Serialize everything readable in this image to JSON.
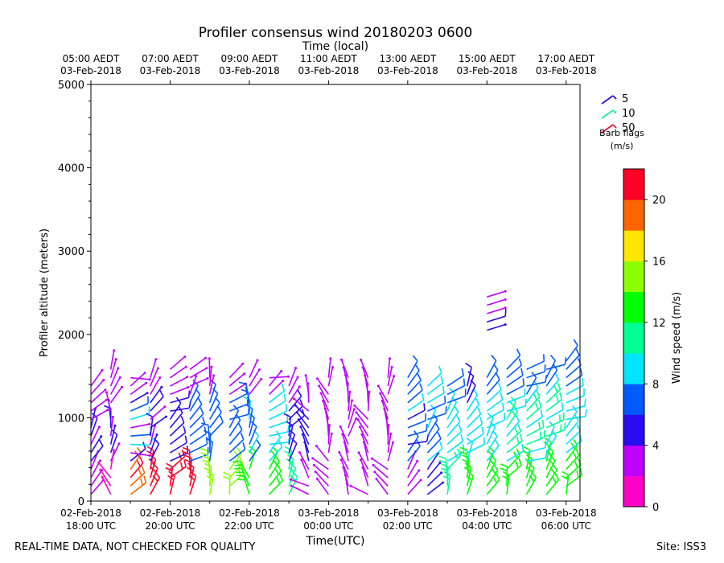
{
  "chart_data": {
    "type": "wind-barb profile",
    "title": "Profiler consensus wind 20180203 0600",
    "top_axis_label": "Time (local)",
    "top_ticks": [
      {
        "line1": "05:00 AEDT",
        "line2": "03-Feb-2018",
        "utc_hours": 0
      },
      {
        "line1": "07:00 AEDT",
        "line2": "03-Feb-2018",
        "utc_hours": 2
      },
      {
        "line1": "09:00 AEDT",
        "line2": "03-Feb-2018",
        "utc_hours": 4
      },
      {
        "line1": "11:00 AEDT",
        "line2": "03-Feb-2018",
        "utc_hours": 6
      },
      {
        "line1": "13:00 AEDT",
        "line2": "03-Feb-2018",
        "utc_hours": 8
      },
      {
        "line1": "15:00 AEDT",
        "line2": "03-Feb-2018",
        "utc_hours": 10
      },
      {
        "line1": "17:00 AEDT",
        "line2": "03-Feb-2018",
        "utc_hours": 12
      }
    ],
    "xlabel": "Time(UTC)",
    "x_ticks": [
      {
        "line1": "02-Feb-2018",
        "line2": "18:00 UTC",
        "utc_hours": 0
      },
      {
        "line1": "02-Feb-2018",
        "line2": "20:00 UTC",
        "utc_hours": 2
      },
      {
        "line1": "02-Feb-2018",
        "line2": "22:00 UTC",
        "utc_hours": 4
      },
      {
        "line1": "03-Feb-2018",
        "line2": "00:00 UTC",
        "utc_hours": 6
      },
      {
        "line1": "03-Feb-2018",
        "line2": "02:00 UTC",
        "utc_hours": 8
      },
      {
        "line1": "03-Feb-2018",
        "line2": "04:00 UTC",
        "utc_hours": 10
      },
      {
        "line1": "03-Feb-2018",
        "line2": "06:00 UTC",
        "utc_hours": 12
      }
    ],
    "xlim_hours": [
      0,
      12.35
    ],
    "ylabel": "Profiler altitude (meters)",
    "ylim": [
      0,
      5000
    ],
    "y_ticks": [
      0,
      1000,
      2000,
      3000,
      4000,
      5000
    ],
    "legend": {
      "title": "Barb flags",
      "units": "(m/s)",
      "entries": [
        {
          "label": "5",
          "color": "#2a0cf0"
        },
        {
          "label": "10",
          "color": "#1de9a6"
        },
        {
          "label": "50",
          "color": "#f0103c"
        }
      ]
    },
    "colorbar": {
      "label": "Wind speed (m/s)",
      "ticks": [
        0,
        4,
        8,
        12,
        16,
        20
      ],
      "range": [
        0,
        22
      ],
      "colors": [
        "#ff00c8",
        "#bf00ff",
        "#2a0cf0",
        "#005aff",
        "#00e5ff",
        "#00ff95",
        "#00ff00",
        "#8cff00",
        "#ffe600",
        "#ff6400",
        "#ff0028"
      ]
    },
    "wind_columns": [
      {
        "t": 0.0,
        "top": 1450,
        "low": [
          2
        ],
        "mid": [
          3,
          6
        ],
        "upper": [
          2
        ],
        "dir": 0.9
      },
      {
        "t": 0.5,
        "top": 1600,
        "low": [
          1
        ],
        "mid": [
          3,
          6
        ],
        "upper": [
          2
        ],
        "dir": 1.4
      },
      {
        "t": 1.0,
        "top": 1550,
        "low": [
          20,
          18
        ],
        "mid": [
          2,
          10
        ],
        "upper": [
          2
        ],
        "dir": 0.3
      },
      {
        "t": 1.5,
        "top": 1550,
        "low": [
          20
        ],
        "mid": [
          3,
          6
        ],
        "upper": [
          2
        ],
        "dir": 1.0
      },
      {
        "t": 2.0,
        "top": 1600,
        "low": [
          20
        ],
        "mid": [
          5,
          6
        ],
        "upper": [
          2
        ],
        "dir": 0.6
      },
      {
        "t": 2.5,
        "top": 1600,
        "low": [
          21
        ],
        "mid": [
          6,
          7
        ],
        "upper": [
          2
        ],
        "dir": 0.8
      },
      {
        "t": 3.0,
        "top": 1500,
        "low": [
          14
        ],
        "mid": [
          6,
          8
        ],
        "upper": [
          2
        ],
        "dir": 1.2
      },
      {
        "t": 3.5,
        "top": 1500,
        "low": [
          14
        ],
        "mid": [
          6,
          7
        ],
        "upper": [
          2
        ],
        "dir": 0.7
      },
      {
        "t": 4.0,
        "top": 1500,
        "low": [
          12
        ],
        "mid": [
          6,
          9
        ],
        "upper": [
          2
        ],
        "dir": 1.3
      },
      {
        "t": 4.5,
        "top": 1500,
        "low": [
          12
        ],
        "mid": [
          8,
          10
        ],
        "upper": [
          3
        ],
        "dir": 0.5
      },
      {
        "t": 5.0,
        "top": 1400,
        "low": [
          10
        ],
        "mid": [
          5,
          6
        ],
        "upper": [
          3
        ],
        "dir": 1.1
      },
      {
        "t": 5.5,
        "top": 1300,
        "low": [
          3
        ],
        "mid": [
          4,
          5
        ],
        "upper": [
          3
        ],
        "dir": 2.0
      },
      {
        "t": 6.0,
        "top": 1550,
        "low": [
          3
        ],
        "mid": [
          3,
          4
        ],
        "upper": [
          2
        ],
        "dir": 1.8
      },
      {
        "t": 6.5,
        "top": 1500,
        "low": [
          2
        ],
        "mid": [
          3,
          4
        ],
        "upper": [
          2
        ],
        "dir": 1.6
      },
      {
        "t": 7.0,
        "top": 1500,
        "low": [
          2
        ],
        "mid": [
          3,
          4
        ],
        "upper": [
          2
        ],
        "dir": 1.9
      },
      {
        "t": 7.5,
        "top": 1550,
        "low": [
          2
        ],
        "mid": [
          3,
          4
        ],
        "upper": [
          2
        ],
        "dir": 1.7
      },
      {
        "t": 8.0,
        "top": 1500,
        "low": [
          3
        ],
        "mid": [
          5,
          9
        ],
        "upper": [
          6
        ],
        "dir": 0.6
      },
      {
        "t": 8.5,
        "top": 1400,
        "low": [
          4
        ],
        "mid": [
          6,
          9
        ],
        "upper": [
          8
        ],
        "dir": 0.7
      },
      {
        "t": 9.0,
        "top": 1400,
        "low": [
          10
        ],
        "mid": [
          8,
          9
        ],
        "upper": [
          6
        ],
        "dir": 0.8
      },
      {
        "t": 9.5,
        "top": 1450,
        "low": [
          12
        ],
        "mid": [
          9,
          10
        ],
        "upper": [
          5
        ],
        "dir": 0.9
      },
      {
        "t": 10.0,
        "top": 1500,
        "low": [
          13
        ],
        "mid": [
          9,
          10
        ],
        "upper": [
          6
        ],
        "dir": 0.8
      },
      {
        "t": 10.5,
        "top": 1600,
        "low": [
          12
        ],
        "mid": [
          9,
          11
        ],
        "upper": [
          6
        ],
        "dir": 0.7
      },
      {
        "t": 11.0,
        "top": 1600,
        "low": [
          12
        ],
        "mid": [
          9,
          11
        ],
        "upper": [
          6
        ],
        "dir": 0.6
      },
      {
        "t": 11.5,
        "top": 1650,
        "low": [
          13
        ],
        "mid": [
          9,
          11
        ],
        "upper": [
          6
        ],
        "dir": 0.7
      },
      {
        "t": 12.0,
        "top": 1700,
        "low": [
          13
        ],
        "mid": [
          9,
          10
        ],
        "upper": [
          6
        ],
        "dir": 0.6
      }
    ],
    "isolated_barbs": [
      {
        "t": 10.0,
        "alt": 2450,
        "speed": 2
      },
      {
        "t": 10.0,
        "alt": 2350,
        "speed": 3
      },
      {
        "t": 10.0,
        "alt": 2250,
        "speed": 3
      },
      {
        "t": 10.0,
        "alt": 2150,
        "speed": 5
      },
      {
        "t": 10.0,
        "alt": 2050,
        "speed": 4
      }
    ]
  },
  "footer": {
    "left": "REAL-TIME DATA, NOT CHECKED FOR QUALITY",
    "right": "Site: ISS3"
  }
}
